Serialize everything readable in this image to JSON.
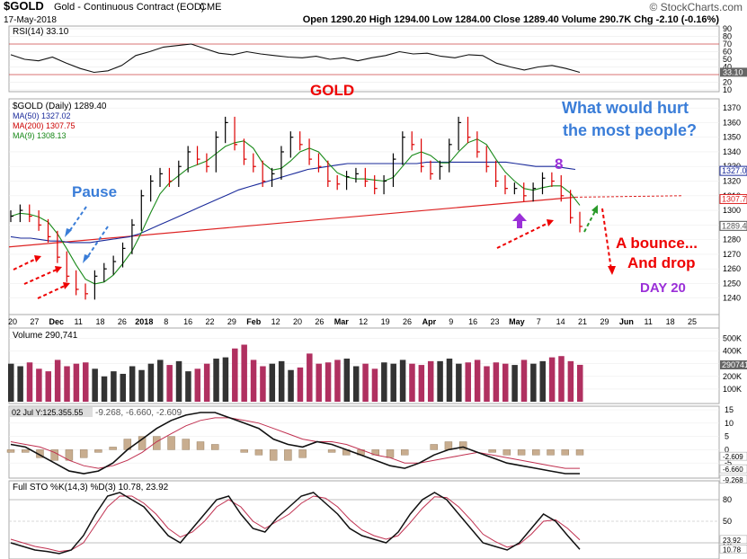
{
  "header": {
    "symbol": "$GOLD",
    "name": "Gold - Continuous Contract (EOD)",
    "exchange": "CME",
    "date": "17-May-2018",
    "brand": "© StockCharts.com",
    "quote": "Open 1290.20  High 1294.00  Low 1284.00  Close 1289.40  Volume 290.7K  Chg -2.10 (-0.16%)"
  },
  "chart_data": [
    {
      "type": "line",
      "panel": "rsi",
      "legend": "RSI(14) 33.10",
      "ylim": [
        10,
        90
      ],
      "ticks": [
        "90",
        "80",
        "70",
        "60",
        "50",
        "40",
        "30",
        "20",
        "10"
      ],
      "current_label": "33.10",
      "series": [
        {
          "values": [
            56,
            50,
            48,
            53,
            45,
            38,
            33,
            35,
            42,
            55,
            60,
            66,
            68,
            70,
            64,
            58,
            56,
            60,
            57,
            55,
            53,
            52,
            54,
            50,
            52,
            48,
            52,
            55,
            60,
            57,
            58,
            54,
            52,
            56,
            55,
            45,
            40,
            36,
            40,
            42,
            38,
            33
          ]
        }
      ]
    },
    {
      "type": "candlestick",
      "panel": "price",
      "title": "GOLD",
      "legend": [
        "$GOLD (Daily) 1289.40",
        "MA(50) 1327.02",
        "MA(200) 1307.75",
        "MA(9) 1308.13"
      ],
      "ylim": [
        1230,
        1375
      ],
      "ticks": [
        "1370",
        "1360",
        "1350",
        "1340",
        "1330",
        "1320",
        "1310",
        "1300",
        "1290",
        "1280",
        "1270",
        "1260",
        "1250",
        "1240"
      ],
      "closes": [
        1296,
        1300,
        1296,
        1290,
        1282,
        1268,
        1255,
        1246,
        1243,
        1255,
        1260,
        1265,
        1274,
        1290,
        1310,
        1320,
        1325,
        1320,
        1330,
        1340,
        1335,
        1330,
        1350,
        1360,
        1345,
        1335,
        1330,
        1320,
        1325,
        1340,
        1350,
        1345,
        1335,
        1330,
        1320,
        1318,
        1323,
        1325,
        1320,
        1315,
        1320,
        1335,
        1350,
        1345,
        1330,
        1325,
        1330,
        1345,
        1360,
        1350,
        1340,
        1330,
        1320,
        1315,
        1315,
        1310,
        1315,
        1322,
        1320,
        1310,
        1295,
        1289
      ],
      "ma50": [
        1282,
        1281,
        1281,
        1280,
        1279,
        1279,
        1278,
        1278,
        1278,
        1279,
        1280,
        1281,
        1282,
        1284,
        1287,
        1290,
        1293,
        1296,
        1299,
        1302,
        1305,
        1308,
        1311,
        1314,
        1316,
        1318,
        1320,
        1322,
        1324,
        1326,
        1328,
        1329,
        1330,
        1331,
        1332,
        1332,
        1332,
        1332,
        1332,
        1332,
        1332,
        1332,
        1333,
        1333,
        1333,
        1333,
        1333,
        1333,
        1333,
        1333,
        1333,
        1332,
        1331,
        1330,
        1330,
        1330,
        1329,
        1328
      ],
      "ma200": [
        1275,
        1292,
        1309
      ],
      "annotations": [
        "Pause",
        "What would hurt the most people?",
        "8",
        "A bounce... And drop",
        "DAY 20"
      ],
      "x_ticks": [
        "20",
        "27",
        "Dec",
        "11",
        "18",
        "26",
        "2018",
        "8",
        "16",
        "22",
        "29",
        "Feb",
        "12",
        "20",
        "26",
        "Mar",
        "12",
        "19",
        "26",
        "Apr",
        "9",
        "16",
        "23",
        "May",
        "7",
        "14",
        "21",
        "29",
        "Jun",
        "11",
        "18",
        "25"
      ]
    },
    {
      "type": "bar",
      "panel": "volume",
      "legend": "Volume 290,741",
      "ticks": [
        "500K",
        "400K",
        "300K",
        "200K",
        "100K"
      ],
      "current_label": "290741",
      "values": [
        300,
        280,
        310,
        260,
        240,
        330,
        280,
        300,
        310,
        260,
        200,
        240,
        220,
        280,
        250,
        300,
        330,
        290,
        320,
        240,
        260,
        300,
        340,
        350,
        420,
        450,
        330,
        280,
        300,
        320,
        250,
        270,
        380,
        300,
        310,
        330,
        340,
        280,
        300,
        260,
        310,
        300,
        330,
        300,
        290,
        320,
        320,
        340,
        300,
        310,
        330,
        280,
        310,
        300,
        290,
        330,
        300,
        320,
        350,
        360,
        320,
        291
      ]
    },
    {
      "type": "line",
      "panel": "macd",
      "legend": "-9.268, -6.660, -2.609",
      "ylim": [
        -10,
        15
      ],
      "ticks": [
        "15",
        "10",
        "5",
        "0",
        "-5"
      ],
      "current_labels": [
        "-2.609",
        "-6.660",
        "-9.268"
      ],
      "series": [
        {
          "values": [
            2,
            1,
            -2,
            -5,
            -8,
            -9,
            -8,
            -5,
            0,
            4,
            8,
            11,
            13,
            14,
            14,
            12,
            10,
            8,
            4,
            2,
            1,
            3,
            2,
            0,
            -2,
            -4,
            -6,
            -7,
            -5,
            -2,
            0,
            1,
            -1,
            -3,
            -5,
            -6,
            -7,
            -8,
            -9,
            -9
          ]
        },
        {
          "values": [
            3,
            2,
            1,
            -1,
            -4,
            -6,
            -7,
            -6,
            -4,
            -1,
            3,
            6,
            9,
            11,
            12,
            12,
            11,
            10,
            8,
            6,
            4,
            3,
            3,
            2,
            0,
            -2,
            -3,
            -5,
            -5,
            -4,
            -3,
            -2,
            -1,
            -2,
            -3,
            -4,
            -5,
            -6,
            -7,
            -7
          ]
        }
      ]
    },
    {
      "type": "line",
      "panel": "sto",
      "legend": "Full STO %K(14,3) %D(3) 10.78, 23.92",
      "ylim": [
        0,
        100
      ],
      "ticks": [
        "80",
        "50",
        "20"
      ],
      "current_labels": [
        "23.92",
        "10.78"
      ],
      "series": [
        {
          "values": [
            20,
            15,
            10,
            8,
            5,
            10,
            30,
            60,
            85,
            90,
            80,
            70,
            50,
            30,
            20,
            40,
            60,
            80,
            85,
            60,
            40,
            35,
            55,
            70,
            85,
            90,
            75,
            60,
            40,
            30,
            25,
            20,
            35,
            60,
            80,
            90,
            80,
            60,
            40,
            20,
            15,
            10,
            20,
            40,
            60,
            50,
            30,
            11
          ]
        },
        {
          "values": [
            25,
            20,
            15,
            12,
            8,
            10,
            20,
            45,
            70,
            85,
            85,
            75,
            60,
            40,
            28,
            35,
            50,
            70,
            80,
            70,
            50,
            40,
            50,
            60,
            75,
            85,
            82,
            70,
            52,
            38,
            30,
            25,
            30,
            48,
            68,
            84,
            83,
            70,
            52,
            32,
            22,
            14,
            18,
            32,
            50,
            52,
            40,
            24
          ]
        }
      ]
    }
  ]
}
